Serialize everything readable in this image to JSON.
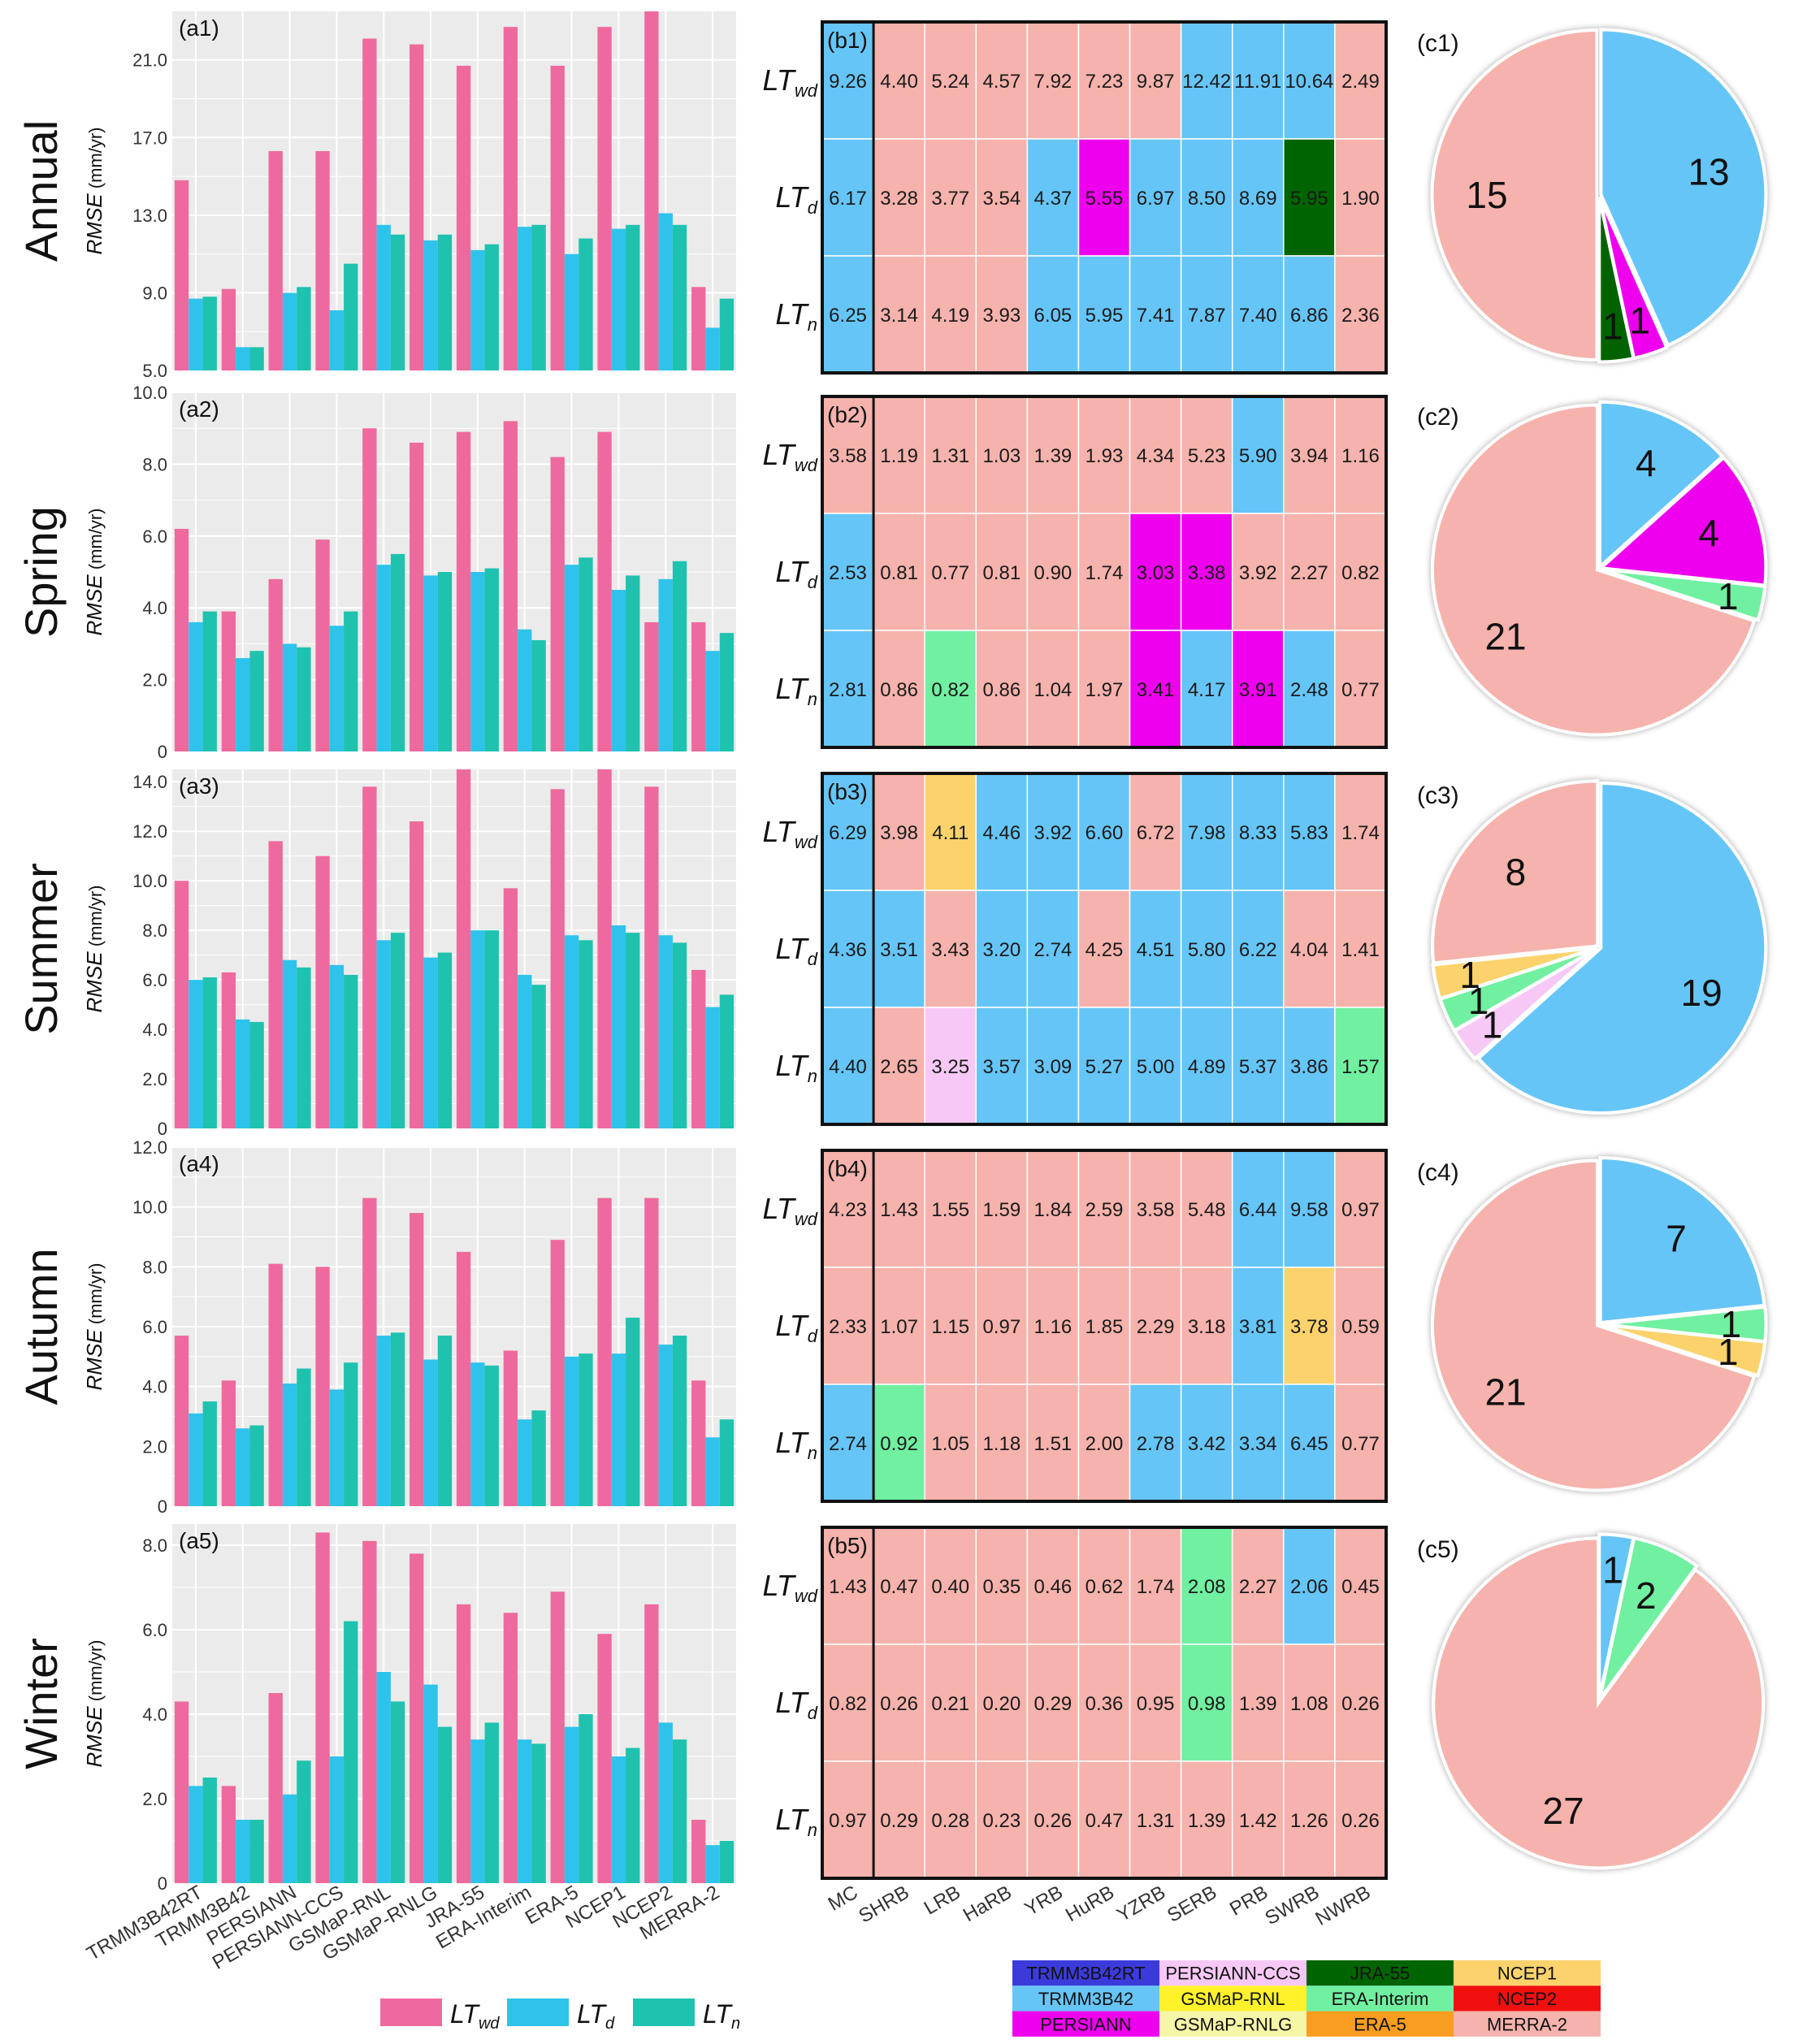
{
  "colors": {
    "panel_bg": "#ebebeb",
    "grid": "#ffffff",
    "bar_series": [
      "#ee6a9e",
      "#2fc3ec",
      "#1fc2ae"
    ],
    "categories": {
      "TRMM3B42RT": "#3b3bdc",
      "TRMM3B42": "#66c5f7",
      "PERSIANN": "#ee00ee",
      "PERSIANN-CCS": "#f7c8f5",
      "GSMaP-RNL": "#fff22a",
      "GSMaP-RNLG": "#f6f6a8",
      "JRA-55": "#006400",
      "ERA-Interim": "#70f0a0",
      "ERA-5": "#f99d21",
      "NCEP1": "#fbd26c",
      "NCEP2": "#f01010",
      "MERRA-2": "#f6b2ac"
    }
  },
  "row_titles": [
    "Annual",
    "Spring",
    "Summer",
    "Autumn",
    "Winter"
  ],
  "ylabel": "RMSE (mm/yr)",
  "ylabel_italic": "RMSE",
  "ylabel_unit": " (mm/yr)",
  "bar_categories": [
    "TRMM3B42RT",
    "TRMM3B42",
    "PERSIANN",
    "PERSIANN-CCS",
    "GSMaP-RNL",
    "GSMaP-RNLG",
    "JRA-55",
    "ERA-Interim",
    "ERA-5",
    "NCEP1",
    "NCEP2",
    "MERRA-2"
  ],
  "series_main": [
    "LT",
    "LT",
    "LT"
  ],
  "series_sub": [
    "wd",
    "d",
    "n"
  ],
  "heat_rows_sub": [
    "wd",
    "d",
    "n"
  ],
  "heat_cols": [
    "MC",
    "SHRB",
    "LRB",
    "HaRB",
    "YRB",
    "HuRB",
    "YZRB",
    "SERB",
    "PRB",
    "SWRB",
    "NWRB"
  ],
  "chart_data": [
    {
      "type": "bar",
      "label": "(a1)",
      "ylim": [
        5.0,
        23.5
      ],
      "yticks": [
        "5.0",
        "9.0",
        "13.0",
        "17.0",
        "21.0"
      ],
      "ytick_values": [
        5,
        9,
        13,
        17,
        21
      ],
      "series": [
        {
          "name": "LTwd",
          "values": [
            14.8,
            9.2,
            16.3,
            16.3,
            22.1,
            21.8,
            20.7,
            22.7,
            20.7,
            22.7,
            23.8,
            9.3
          ]
        },
        {
          "name": "LTd",
          "values": [
            8.7,
            6.2,
            9.0,
            8.1,
            12.5,
            11.7,
            11.2,
            12.4,
            11.0,
            12.3,
            13.1,
            7.2
          ]
        },
        {
          "name": "LTn",
          "values": [
            8.8,
            6.2,
            9.3,
            10.5,
            12.0,
            12.0,
            11.5,
            12.5,
            11.8,
            12.5,
            12.5,
            8.7
          ]
        }
      ]
    },
    {
      "type": "bar",
      "label": "(a2)",
      "ylim": [
        0,
        10.0
      ],
      "yticks": [
        "0",
        "2.0",
        "4.0",
        "6.0",
        "8.0",
        "10.0"
      ],
      "ytick_values": [
        0,
        2,
        4,
        6,
        8,
        10
      ],
      "series": [
        {
          "name": "LTwd",
          "values": [
            6.2,
            3.9,
            4.8,
            5.9,
            9.0,
            8.6,
            8.9,
            9.2,
            8.2,
            8.9,
            3.6,
            3.6
          ]
        },
        {
          "name": "LTd",
          "values": [
            3.6,
            2.6,
            3.0,
            3.5,
            5.2,
            4.9,
            5.0,
            3.4,
            5.2,
            4.5,
            4.8,
            2.8
          ]
        },
        {
          "name": "LTn",
          "values": [
            3.9,
            2.8,
            2.9,
            3.9,
            5.5,
            5.0,
            5.1,
            3.1,
            5.4,
            4.9,
            5.3,
            3.3
          ]
        }
      ]
    },
    {
      "type": "bar",
      "label": "(a3)",
      "ylim": [
        0,
        14.5
      ],
      "yticks": [
        "0",
        "2.0",
        "4.0",
        "6.0",
        "8.0",
        "10.0",
        "12.0",
        "14.0"
      ],
      "ytick_values": [
        0,
        2,
        4,
        6,
        8,
        10,
        12,
        14
      ],
      "series": [
        {
          "name": "LTwd",
          "values": [
            10.0,
            6.3,
            11.6,
            11.0,
            13.8,
            12.4,
            14.5,
            9.7,
            13.7,
            14.5,
            13.8,
            6.4
          ]
        },
        {
          "name": "LTd",
          "values": [
            6.0,
            4.4,
            6.8,
            6.6,
            7.6,
            6.9,
            8.0,
            6.2,
            7.8,
            8.2,
            7.8,
            4.9
          ]
        },
        {
          "name": "LTn",
          "values": [
            6.1,
            4.3,
            6.5,
            6.2,
            7.9,
            7.1,
            8.0,
            5.8,
            7.6,
            7.9,
            7.5,
            5.4
          ]
        }
      ]
    },
    {
      "type": "bar",
      "label": "(a4)",
      "ylim": [
        0,
        12.0
      ],
      "yticks": [
        "0",
        "2.0",
        "4.0",
        "6.0",
        "8.0",
        "10.0",
        "12.0"
      ],
      "ytick_values": [
        0,
        2,
        4,
        6,
        8,
        10,
        12
      ],
      "series": [
        {
          "name": "LTwd",
          "values": [
            5.7,
            4.2,
            8.1,
            8.0,
            10.3,
            9.8,
            8.5,
            5.2,
            8.9,
            10.3,
            10.3,
            4.2
          ]
        },
        {
          "name": "LTd",
          "values": [
            3.1,
            2.6,
            4.1,
            3.9,
            5.7,
            4.9,
            4.8,
            2.9,
            5.0,
            5.1,
            5.4,
            2.3
          ]
        },
        {
          "name": "LTn",
          "values": [
            3.5,
            2.7,
            4.6,
            4.8,
            5.8,
            5.7,
            4.7,
            3.2,
            5.1,
            6.3,
            5.7,
            2.9
          ]
        }
      ]
    },
    {
      "type": "bar",
      "label": "(a5)",
      "ylim": [
        0,
        8.5
      ],
      "yticks": [
        "0",
        "2.0",
        "4.0",
        "6.0",
        "8.0"
      ],
      "ytick_values": [
        0,
        2,
        4,
        6,
        8
      ],
      "series": [
        {
          "name": "LTwd",
          "values": [
            4.3,
            2.3,
            4.5,
            8.3,
            8.1,
            7.8,
            6.6,
            6.4,
            6.9,
            5.9,
            6.6,
            1.5
          ]
        },
        {
          "name": "LTd",
          "values": [
            2.3,
            1.5,
            2.1,
            3.0,
            5.0,
            4.7,
            3.4,
            3.4,
            3.7,
            3.0,
            3.8,
            0.9
          ]
        },
        {
          "name": "LTn",
          "values": [
            2.5,
            1.5,
            2.9,
            6.2,
            4.3,
            3.7,
            3.8,
            3.3,
            4.0,
            3.2,
            3.4,
            1.0
          ]
        }
      ]
    },
    {
      "type": "heatmap",
      "label": "(b1)",
      "values": [
        [
          "9.26",
          "4.40",
          "5.24",
          "4.57",
          "7.92",
          "7.23",
          "9.87",
          "12.42",
          "11.91",
          "10.64",
          "2.49"
        ],
        [
          "6.17",
          "3.28",
          "3.77",
          "3.54",
          "4.37",
          "5.55",
          "6.97",
          "8.50",
          "8.69",
          "5.95",
          "1.90"
        ],
        [
          "6.25",
          "3.14",
          "4.19",
          "3.93",
          "6.05",
          "5.95",
          "7.41",
          "7.87",
          "7.40",
          "6.86",
          "2.36"
        ]
      ],
      "best": [
        [
          "TRMM3B42",
          "MERRA-2",
          "MERRA-2",
          "MERRA-2",
          "MERRA-2",
          "MERRA-2",
          "MERRA-2",
          "TRMM3B42",
          "TRMM3B42",
          "TRMM3B42",
          "MERRA-2"
        ],
        [
          "TRMM3B42",
          "MERRA-2",
          "MERRA-2",
          "MERRA-2",
          "TRMM3B42",
          "PERSIANN",
          "TRMM3B42",
          "TRMM3B42",
          "TRMM3B42",
          "JRA-55",
          "MERRA-2"
        ],
        [
          "TRMM3B42",
          "MERRA-2",
          "MERRA-2",
          "MERRA-2",
          "TRMM3B42",
          "TRMM3B42",
          "TRMM3B42",
          "TRMM3B42",
          "TRMM3B42",
          "TRMM3B42",
          "MERRA-2"
        ]
      ]
    },
    {
      "type": "heatmap",
      "label": "(b2)",
      "values": [
        [
          "3.58",
          "1.19",
          "1.31",
          "1.03",
          "1.39",
          "1.93",
          "4.34",
          "5.23",
          "5.90",
          "3.94",
          "1.16"
        ],
        [
          "2.53",
          "0.81",
          "0.77",
          "0.81",
          "0.90",
          "1.74",
          "3.03",
          "3.38",
          "3.92",
          "2.27",
          "0.82"
        ],
        [
          "2.81",
          "0.86",
          "0.82",
          "0.86",
          "1.04",
          "1.97",
          "3.41",
          "4.17",
          "3.91",
          "2.48",
          "0.77"
        ]
      ],
      "best": [
        [
          "MERRA-2",
          "MERRA-2",
          "MERRA-2",
          "MERRA-2",
          "MERRA-2",
          "MERRA-2",
          "MERRA-2",
          "MERRA-2",
          "TRMM3B42",
          "MERRA-2",
          "MERRA-2"
        ],
        [
          "TRMM3B42",
          "MERRA-2",
          "MERRA-2",
          "MERRA-2",
          "MERRA-2",
          "MERRA-2",
          "PERSIANN",
          "PERSIANN",
          "MERRA-2",
          "MERRA-2",
          "MERRA-2"
        ],
        [
          "TRMM3B42",
          "MERRA-2",
          "ERA-Interim",
          "MERRA-2",
          "MERRA-2",
          "MERRA-2",
          "PERSIANN",
          "TRMM3B42",
          "PERSIANN",
          "TRMM3B42",
          "MERRA-2"
        ]
      ]
    },
    {
      "type": "heatmap",
      "label": "(b3)",
      "values": [
        [
          "6.29",
          "3.98",
          "4.11",
          "4.46",
          "3.92",
          "6.60",
          "6.72",
          "7.98",
          "8.33",
          "5.83",
          "1.74"
        ],
        [
          "4.36",
          "3.51",
          "3.43",
          "3.20",
          "2.74",
          "4.25",
          "4.51",
          "5.80",
          "6.22",
          "4.04",
          "1.41"
        ],
        [
          "4.40",
          "2.65",
          "3.25",
          "3.57",
          "3.09",
          "5.27",
          "5.00",
          "4.89",
          "5.37",
          "3.86",
          "1.57"
        ]
      ],
      "best": [
        [
          "TRMM3B42",
          "MERRA-2",
          "NCEP1",
          "TRMM3B42",
          "TRMM3B42",
          "TRMM3B42",
          "MERRA-2",
          "TRMM3B42",
          "TRMM3B42",
          "TRMM3B42",
          "MERRA-2"
        ],
        [
          "TRMM3B42",
          "TRMM3B42",
          "MERRA-2",
          "TRMM3B42",
          "TRMM3B42",
          "MERRA-2",
          "TRMM3B42",
          "TRMM3B42",
          "TRMM3B42",
          "MERRA-2",
          "MERRA-2"
        ],
        [
          "TRMM3B42",
          "MERRA-2",
          "PERSIANN-CCS",
          "TRMM3B42",
          "TRMM3B42",
          "TRMM3B42",
          "TRMM3B42",
          "TRMM3B42",
          "TRMM3B42",
          "TRMM3B42",
          "ERA-Interim"
        ]
      ]
    },
    {
      "type": "heatmap",
      "label": "(b4)",
      "values": [
        [
          "4.23",
          "1.43",
          "1.55",
          "1.59",
          "1.84",
          "2.59",
          "3.58",
          "5.48",
          "6.44",
          "9.58",
          "0.97"
        ],
        [
          "2.33",
          "1.07",
          "1.15",
          "0.97",
          "1.16",
          "1.85",
          "2.29",
          "3.18",
          "3.81",
          "3.78",
          "0.59"
        ],
        [
          "2.74",
          "0.92",
          "1.05",
          "1.18",
          "1.51",
          "2.00",
          "2.78",
          "3.42",
          "3.34",
          "6.45",
          "0.77"
        ]
      ],
      "best": [
        [
          "MERRA-2",
          "MERRA-2",
          "MERRA-2",
          "MERRA-2",
          "MERRA-2",
          "MERRA-2",
          "MERRA-2",
          "MERRA-2",
          "TRMM3B42",
          "TRMM3B42",
          "MERRA-2"
        ],
        [
          "MERRA-2",
          "MERRA-2",
          "MERRA-2",
          "MERRA-2",
          "MERRA-2",
          "MERRA-2",
          "MERRA-2",
          "MERRA-2",
          "TRMM3B42",
          "NCEP1",
          "MERRA-2"
        ],
        [
          "TRMM3B42",
          "ERA-Interim",
          "MERRA-2",
          "MERRA-2",
          "MERRA-2",
          "MERRA-2",
          "TRMM3B42",
          "TRMM3B42",
          "TRMM3B42",
          "TRMM3B42",
          "MERRA-2"
        ]
      ]
    },
    {
      "type": "heatmap",
      "label": "(b5)",
      "values": [
        [
          "1.43",
          "0.47",
          "0.40",
          "0.35",
          "0.46",
          "0.62",
          "1.74",
          "2.08",
          "2.27",
          "2.06",
          "0.45"
        ],
        [
          "0.82",
          "0.26",
          "0.21",
          "0.20",
          "0.29",
          "0.36",
          "0.95",
          "0.98",
          "1.39",
          "1.08",
          "0.26"
        ],
        [
          "0.97",
          "0.29",
          "0.28",
          "0.23",
          "0.26",
          "0.47",
          "1.31",
          "1.39",
          "1.42",
          "1.26",
          "0.26"
        ]
      ],
      "best": [
        [
          "MERRA-2",
          "MERRA-2",
          "MERRA-2",
          "MERRA-2",
          "MERRA-2",
          "MERRA-2",
          "MERRA-2",
          "ERA-Interim",
          "MERRA-2",
          "TRMM3B42",
          "MERRA-2"
        ],
        [
          "MERRA-2",
          "MERRA-2",
          "MERRA-2",
          "MERRA-2",
          "MERRA-2",
          "MERRA-2",
          "MERRA-2",
          "ERA-Interim",
          "MERRA-2",
          "MERRA-2",
          "MERRA-2"
        ],
        [
          "MERRA-2",
          "MERRA-2",
          "MERRA-2",
          "MERRA-2",
          "MERRA-2",
          "MERRA-2",
          "MERRA-2",
          "MERRA-2",
          "MERRA-2",
          "MERRA-2",
          "MERRA-2"
        ]
      ]
    },
    {
      "type": "pie",
      "label": "(c1)",
      "start_deg": 0,
      "gap_deg": 2.5,
      "slices": [
        {
          "name": "TRMM3B42",
          "value": 13,
          "label": "13"
        },
        {
          "name": "PERSIANN",
          "value": 1,
          "label": "1"
        },
        {
          "name": "JRA-55",
          "value": 1,
          "label": "1"
        },
        {
          "name": "MERRA-2",
          "value": 15,
          "label": "15"
        }
      ]
    },
    {
      "type": "pie",
      "label": "(c2)",
      "start_deg": 0,
      "gap_deg": 2.5,
      "slices": [
        {
          "name": "TRMM3B42",
          "value": 4,
          "label": "4"
        },
        {
          "name": "PERSIANN",
          "value": 4,
          "label": "4"
        },
        {
          "name": "ERA-Interim",
          "value": 1,
          "label": "1"
        },
        {
          "name": "MERRA-2",
          "value": 21,
          "label": "21"
        }
      ]
    },
    {
      "type": "pie",
      "label": "(c3)",
      "start_deg": 0,
      "gap_deg": 2.5,
      "slices": [
        {
          "name": "TRMM3B42",
          "value": 19,
          "label": "19"
        },
        {
          "name": "PERSIANN-CCS",
          "value": 1,
          "label": "1"
        },
        {
          "name": "ERA-Interim",
          "value": 1,
          "label": "1"
        },
        {
          "name": "NCEP1",
          "value": 1,
          "label": "1"
        },
        {
          "name": "MERRA-2",
          "value": 8,
          "label": "8"
        }
      ]
    },
    {
      "type": "pie",
      "label": "(c4)",
      "start_deg": 0,
      "gap_deg": 2.5,
      "slices": [
        {
          "name": "TRMM3B42",
          "value": 7,
          "label": "7"
        },
        {
          "name": "ERA-Interim",
          "value": 1,
          "label": "1"
        },
        {
          "name": "NCEP1",
          "value": 1,
          "label": "1"
        },
        {
          "name": "MERRA-2",
          "value": 21,
          "label": "21"
        }
      ]
    },
    {
      "type": "pie",
      "label": "(c5)",
      "start_deg": 0,
      "gap_deg": 2.5,
      "slices": [
        {
          "name": "TRMM3B42",
          "value": 1,
          "label": "1"
        },
        {
          "name": "ERA-Interim",
          "value": 2,
          "label": "2"
        },
        {
          "name": "MERRA-2",
          "value": 27,
          "label": "27"
        }
      ]
    }
  ],
  "category_legend": [
    [
      "TRMM3B42RT",
      "PERSIANN-CCS",
      "JRA-55",
      "NCEP1"
    ],
    [
      "TRMM3B42",
      "GSMaP-RNL",
      "ERA-Interim",
      "NCEP2"
    ],
    [
      "PERSIANN",
      "GSMaP-RNLG",
      "ERA-5",
      "MERRA-2"
    ]
  ]
}
